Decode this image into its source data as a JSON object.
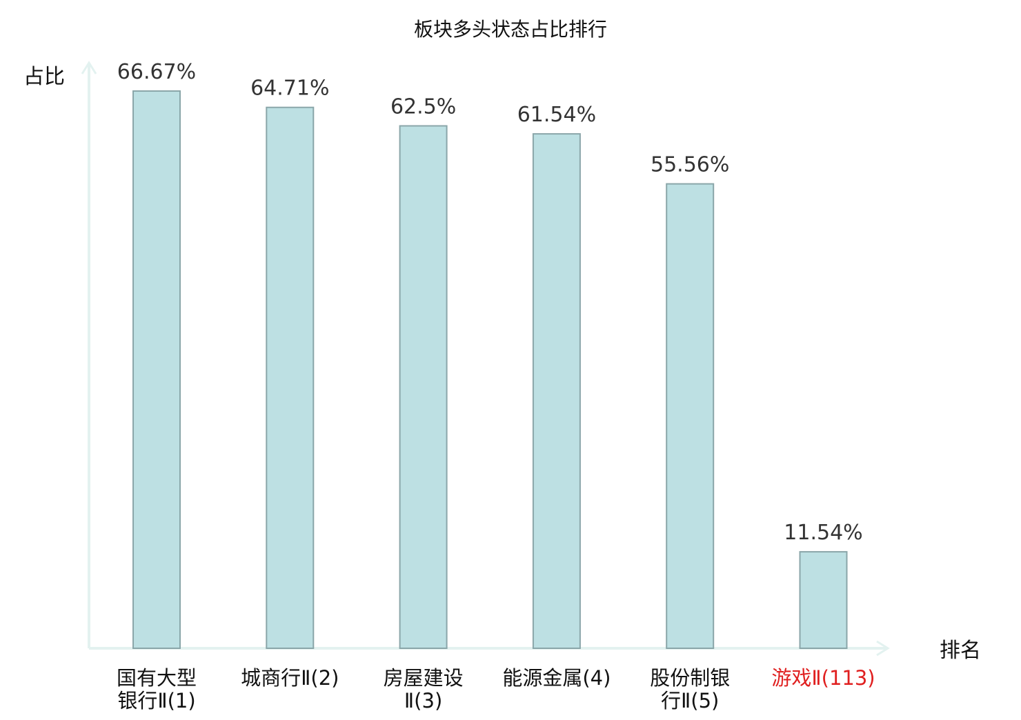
{
  "chart_data": {
    "type": "bar",
    "title": "板块多头状态占比排行",
    "ylabel": "占比",
    "xlabel": "排名",
    "ylim": [
      0,
      70
    ],
    "grid": false,
    "legend": "none",
    "bar_color": "#bde0e3",
    "bar_border_color": "#8aa6a9",
    "axis_color": "#e3f2f0",
    "highlight_color": "#e02020",
    "categories": [
      {
        "label": "国有大型银行Ⅱ(1)",
        "lines": [
          "国有大型",
          "银行Ⅱ(1)"
        ],
        "highlight": false
      },
      {
        "label": "城商行Ⅱ(2)",
        "lines": [
          "城商行Ⅱ(2)"
        ],
        "highlight": false
      },
      {
        "label": "房屋建设Ⅱ(3)",
        "lines": [
          "房屋建设",
          "Ⅱ(3)"
        ],
        "highlight": false
      },
      {
        "label": "能源金属(4)",
        "lines": [
          "能源金属(4)"
        ],
        "highlight": false
      },
      {
        "label": "股份制银行Ⅱ(5)",
        "lines": [
          "股份制银",
          "行Ⅱ(5)"
        ],
        "highlight": false
      },
      {
        "label": "游戏Ⅱ(113)",
        "lines": [
          "游戏Ⅱ(113)"
        ],
        "highlight": true
      }
    ],
    "values": [
      66.67,
      64.71,
      62.5,
      61.54,
      55.56,
      11.54
    ],
    "value_labels": [
      "66.67%",
      "64.71%",
      "62.5%",
      "61.54%",
      "55.56%",
      "11.54%"
    ]
  }
}
